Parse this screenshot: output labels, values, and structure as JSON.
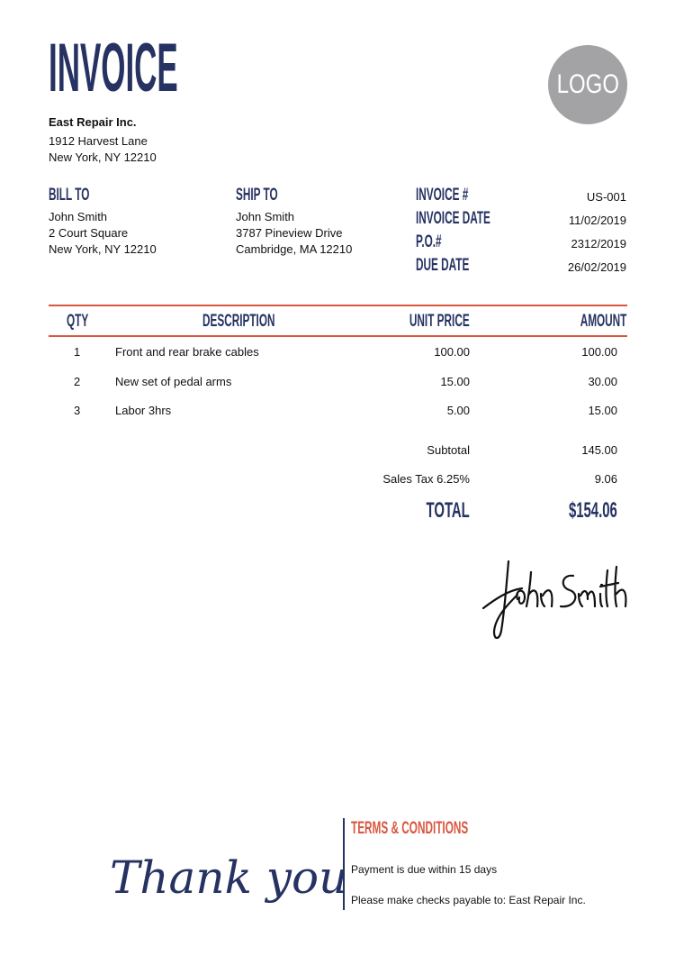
{
  "header": {
    "title": "INVOICE",
    "logo": "LOGO"
  },
  "company": {
    "name": "East Repair Inc.",
    "address1": "1912 Harvest Lane",
    "address2": "New York, NY 12210"
  },
  "bill_to": {
    "label": "BILL TO",
    "name": "John Smith",
    "address1": "2 Court Square",
    "address2": "New York, NY 12210"
  },
  "ship_to": {
    "label": "SHIP TO",
    "name": "John Smith",
    "address1": "3787 Pineview Drive",
    "address2": "Cambridge, MA 12210"
  },
  "meta": [
    {
      "label": "INVOICE #",
      "value": "US-001"
    },
    {
      "label": "INVOICE DATE",
      "value": "11/02/2019"
    },
    {
      "label": "P.O.#",
      "value": "2312/2019"
    },
    {
      "label": "DUE DATE",
      "value": "26/02/2019"
    }
  ],
  "table": {
    "columns": {
      "qty": "QTY",
      "description": "DESCRIPTION",
      "unit_price": "UNIT PRICE",
      "amount": "AMOUNT"
    },
    "rows": [
      {
        "qty": "1",
        "description": "Front and rear brake cables",
        "unit_price": "100.00",
        "amount": "100.00"
      },
      {
        "qty": "2",
        "description": "New set of pedal arms",
        "unit_price": "15.00",
        "amount": "30.00"
      },
      {
        "qty": "3",
        "description": "Labor 3hrs",
        "unit_price": "5.00",
        "amount": "15.00"
      }
    ]
  },
  "totals": {
    "subtotal_label": "Subtotal",
    "subtotal": "145.00",
    "tax_label": "Sales Tax 6.25%",
    "tax": "9.06",
    "total_label": "TOTAL",
    "total": "$154.06"
  },
  "signature": "John Smith",
  "footer": {
    "thanks": "Thank you",
    "terms_title": "TERMS & CONDITIONS",
    "terms_line1": "Payment is due within 15 days",
    "terms_line2": "Please make checks payable to: East Repair Inc."
  },
  "colors": {
    "navy": "#263262",
    "accent": "#d9573f",
    "logo_bg": "#a3a3a5"
  }
}
